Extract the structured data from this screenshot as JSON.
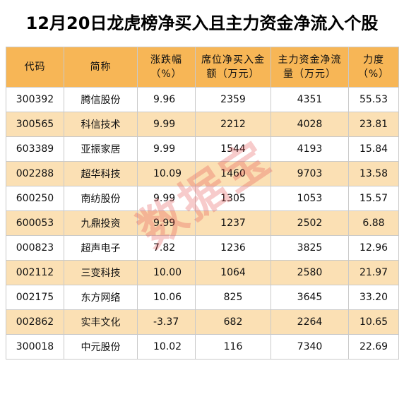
{
  "title": "12月20日龙虎榜净买入且主力资金净流入个股",
  "watermark": "数据宝",
  "colors": {
    "header_bg": "#f7b656",
    "stripe_bg": "#fbe0b4",
    "watermark": "#e24646"
  },
  "headers": {
    "code": "代码",
    "name": "简称",
    "change": "涨跌幅（%）",
    "seat_net_buy": "席位净买入金额（万元）",
    "main_net_inflow": "主力资金净流量（万元）",
    "strength": "力度（%）"
  },
  "rows": [
    {
      "code": "300392",
      "name": "腾信股份",
      "change": "9.96",
      "seat_net_buy": "2359",
      "main_net_inflow": "4351",
      "strength": "55.53"
    },
    {
      "code": "300565",
      "name": "科信技术",
      "change": "9.99",
      "seat_net_buy": "2212",
      "main_net_inflow": "4028",
      "strength": "23.81"
    },
    {
      "code": "603389",
      "name": "亚振家居",
      "change": "9.99",
      "seat_net_buy": "1544",
      "main_net_inflow": "4193",
      "strength": "15.84"
    },
    {
      "code": "002288",
      "name": "超华科技",
      "change": "10.09",
      "seat_net_buy": "1460",
      "main_net_inflow": "9703",
      "strength": "13.58"
    },
    {
      "code": "600250",
      "name": "南纺股份",
      "change": "9.99",
      "seat_net_buy": "1305",
      "main_net_inflow": "1053",
      "strength": "15.57"
    },
    {
      "code": "600053",
      "name": "九鼎投资",
      "change": "9.99",
      "seat_net_buy": "1237",
      "main_net_inflow": "2502",
      "strength": "6.88"
    },
    {
      "code": "000823",
      "name": "超声电子",
      "change": "7.82",
      "seat_net_buy": "1236",
      "main_net_inflow": "3825",
      "strength": "12.96"
    },
    {
      "code": "002112",
      "name": "三变科技",
      "change": "10.00",
      "seat_net_buy": "1064",
      "main_net_inflow": "2580",
      "strength": "21.97"
    },
    {
      "code": "002175",
      "name": "东方网络",
      "change": "10.06",
      "seat_net_buy": "825",
      "main_net_inflow": "3645",
      "strength": "33.20"
    },
    {
      "code": "002862",
      "name": "实丰文化",
      "change": "-3.37",
      "seat_net_buy": "682",
      "main_net_inflow": "2264",
      "strength": "10.65"
    },
    {
      "code": "300018",
      "name": "中元股份",
      "change": "10.02",
      "seat_net_buy": "116",
      "main_net_inflow": "7340",
      "strength": "22.69"
    }
  ]
}
